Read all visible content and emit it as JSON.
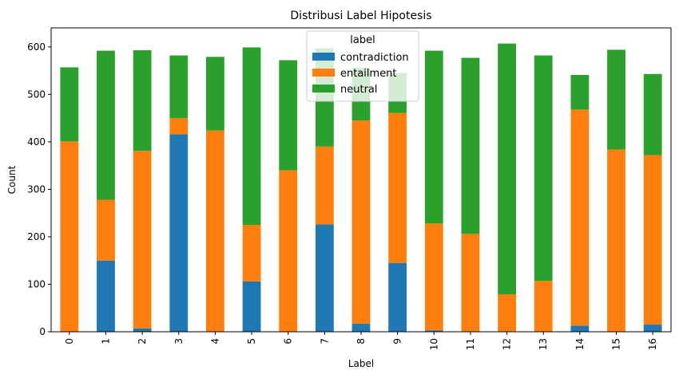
{
  "chart_data": {
    "type": "bar",
    "stacked": true,
    "title": "Distribusi Label Hipotesis",
    "xlabel": "Label",
    "ylabel": "Count",
    "ylim": [
      0,
      640
    ],
    "yticks": [
      0,
      100,
      200,
      300,
      400,
      500,
      600
    ],
    "grid": false,
    "legend": {
      "title": "label",
      "placement": "top-center"
    },
    "categories": [
      "0",
      "1",
      "2",
      "3",
      "4",
      "5",
      "6",
      "7",
      "8",
      "9",
      "10",
      "11",
      "12",
      "13",
      "14",
      "15",
      "16"
    ],
    "series": [
      {
        "name": "contradiction",
        "color": "#1f77b4",
        "values": [
          0,
          150,
          7,
          416,
          0,
          106,
          0,
          226,
          17,
          145,
          3,
          1,
          1,
          0,
          13,
          0,
          15
        ]
      },
      {
        "name": "entailment",
        "color": "#ff7f0e",
        "values": [
          401,
          128,
          374,
          34,
          424,
          119,
          340,
          164,
          428,
          316,
          225,
          205,
          78,
          107,
          455,
          384,
          357
        ]
      },
      {
        "name": "neutral",
        "color": "#2ca02c",
        "values": [
          156,
          314,
          212,
          132,
          155,
          374,
          232,
          207,
          111,
          84,
          364,
          371,
          528,
          475,
          73,
          210,
          171
        ]
      }
    ]
  }
}
